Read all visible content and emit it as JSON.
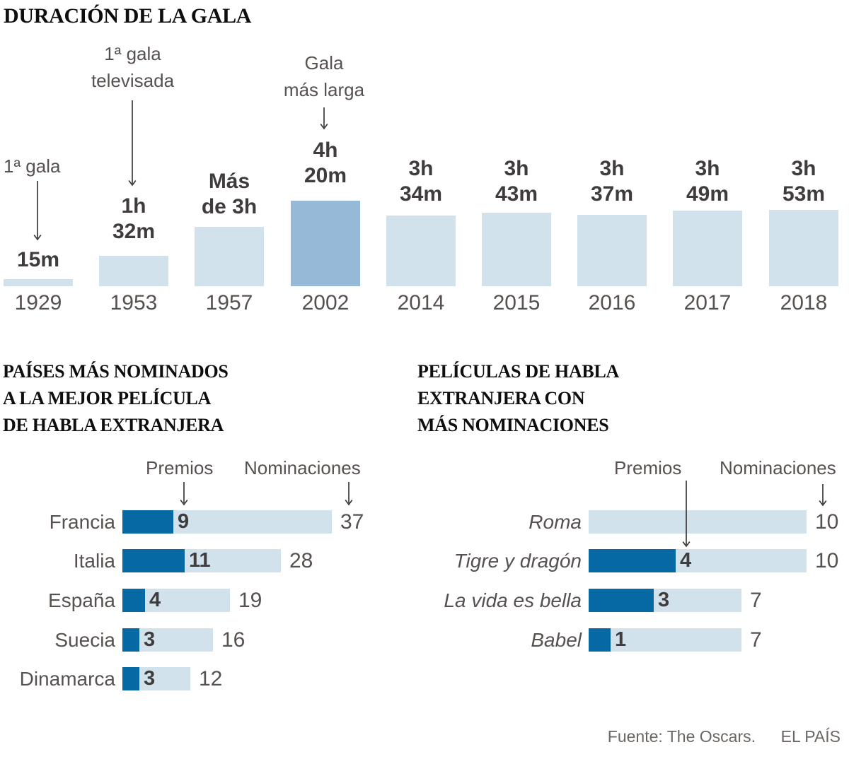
{
  "page": {
    "source_label": "Fuente: The Oscars.",
    "brand": "EL PAÍS"
  },
  "colors": {
    "bar_light": "#d2e2ec",
    "bar_highlight": "#95b9d6",
    "bar_dark": "#0769a3"
  },
  "chart_data": [
    {
      "id": "gala_duration",
      "type": "bar",
      "title": "DURACIÓN DE LA GALA",
      "categories": [
        "1929",
        "1953",
        "1957",
        "2002",
        "2014",
        "2015",
        "2016",
        "2017",
        "2018"
      ],
      "values_minutes": [
        15,
        92,
        181,
        260,
        214,
        223,
        217,
        229,
        233
      ],
      "bar_labels": [
        "15m",
        "1h\n32m",
        "Más\nde 3h",
        "4h\n20m",
        "3h\n34m",
        "3h\n43m",
        "3h\n37m",
        "3h\n49m",
        "3h\n53m"
      ],
      "highlight_category": "2002",
      "ylim_minutes": [
        0,
        260
      ],
      "grid": false,
      "annotations": [
        {
          "text": "1ª gala",
          "target": "1929"
        },
        {
          "text": "1ª gala\ntelevisada",
          "target": "1953"
        },
        {
          "text": "Gala\nmás larga",
          "target": "2002"
        }
      ]
    },
    {
      "id": "paises_mas_nominados",
      "type": "bar",
      "orientation": "horizontal",
      "title": "PAÍSES MÁS NOMINADOS\nA LA MEJOR PELÍCULA\nDE HABLA EXTRANJERA",
      "legend": [
        "Premios",
        "Nominaciones"
      ],
      "legend_position": "top",
      "categories": [
        "Francia",
        "Italia",
        "España",
        "Suecia",
        "Dinamarca"
      ],
      "series": [
        {
          "name": "Premios",
          "values": [
            9,
            11,
            4,
            3,
            3
          ]
        },
        {
          "name": "Nominaciones",
          "values": [
            37,
            28,
            19,
            16,
            12
          ]
        }
      ]
    },
    {
      "id": "peliculas_mas_nominadas",
      "type": "bar",
      "orientation": "horizontal",
      "title": "PELÍCULAS DE HABLA\nEXTRANJERA CON\nMÁS NOMINACIONES",
      "legend": [
        "Premios",
        "Nominaciones"
      ],
      "legend_position": "top",
      "categories": [
        "Roma",
        "Tigre y dragón",
        "La vida es bella",
        "Babel"
      ],
      "series": [
        {
          "name": "Premios",
          "values": [
            null,
            4,
            3,
            1
          ]
        },
        {
          "name": "Nominaciones",
          "values": [
            10,
            10,
            7,
            7
          ]
        }
      ],
      "label_style": "italic"
    }
  ]
}
